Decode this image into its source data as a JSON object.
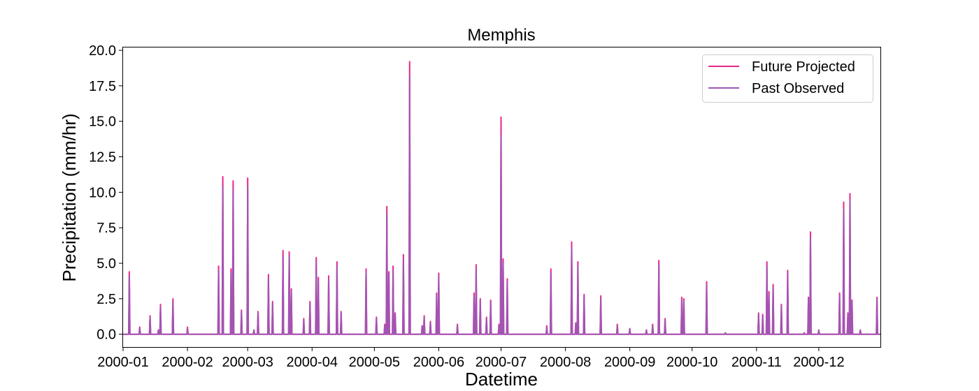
{
  "chart_data": {
    "type": "line",
    "title": "Memphis",
    "xlabel": "Datetime",
    "ylabel": "Precipitation (mm/hr)",
    "xlim": [
      "2000-01-01",
      "2000-12-31"
    ],
    "ylim": [
      -0.9,
      20.2
    ],
    "yticks": [
      0.0,
      2.5,
      5.0,
      7.5,
      10.0,
      12.5,
      15.0,
      17.5,
      20.0
    ],
    "ytick_labels": [
      "0.0",
      "2.5",
      "5.0",
      "7.5",
      "10.0",
      "12.5",
      "15.0",
      "17.5",
      "20.0"
    ],
    "xticks": [
      "2000-01-01",
      "2000-02-01",
      "2000-03-01",
      "2000-04-01",
      "2000-05-01",
      "2000-06-01",
      "2000-07-01",
      "2000-08-01",
      "2000-09-01",
      "2000-10-01",
      "2000-11-01",
      "2000-12-01"
    ],
    "xtick_labels": [
      "2000-01",
      "2000-02",
      "2000-03",
      "2000-04",
      "2000-05",
      "2000-06",
      "2000-07",
      "2000-08",
      "2000-09",
      "2000-10",
      "2000-11",
      "2000-12"
    ],
    "grid": false,
    "legend": {
      "position": "top-right"
    },
    "series": [
      {
        "name": "Future Projected",
        "color": "#e7298a",
        "points": [
          [
            "2000-01-04",
            4.4
          ],
          [
            "2000-01-09",
            0.5
          ],
          [
            "2000-01-14",
            1.3
          ],
          [
            "2000-01-18",
            0.3
          ],
          [
            "2000-01-19",
            2.1
          ],
          [
            "2000-01-25",
            2.5
          ],
          [
            "2000-02-01",
            0.5
          ],
          [
            "2000-02-16",
            4.8
          ],
          [
            "2000-02-18",
            11.1
          ],
          [
            "2000-02-22",
            4.6
          ],
          [
            "2000-02-23",
            10.8
          ],
          [
            "2000-02-27",
            1.7
          ],
          [
            "2000-03-01",
            11.0
          ],
          [
            "2000-03-04",
            0.3
          ],
          [
            "2000-03-06",
            1.6
          ],
          [
            "2000-03-11",
            4.2
          ],
          [
            "2000-03-13",
            2.3
          ],
          [
            "2000-03-18",
            5.9
          ],
          [
            "2000-03-21",
            5.8
          ],
          [
            "2000-03-22",
            3.2
          ],
          [
            "2000-03-28",
            1.1
          ],
          [
            "2000-03-31",
            2.3
          ],
          [
            "2000-04-03",
            5.4
          ],
          [
            "2000-04-04",
            4.0
          ],
          [
            "2000-04-09",
            4.1
          ],
          [
            "2000-04-13",
            5.1
          ],
          [
            "2000-04-15",
            1.6
          ],
          [
            "2000-04-27",
            4.6
          ],
          [
            "2000-05-02",
            1.2
          ],
          [
            "2000-05-06",
            0.7
          ],
          [
            "2000-05-07",
            9.0
          ],
          [
            "2000-05-08",
            4.4
          ],
          [
            "2000-05-10",
            4.8
          ],
          [
            "2000-05-11",
            1.5
          ],
          [
            "2000-05-15",
            5.6
          ],
          [
            "2000-05-18",
            19.2
          ],
          [
            "2000-05-24",
            0.6
          ],
          [
            "2000-05-25",
            1.3
          ],
          [
            "2000-05-28",
            0.9
          ],
          [
            "2000-05-31",
            2.9
          ],
          [
            "2000-06-01",
            4.3
          ],
          [
            "2000-06-10",
            0.7
          ],
          [
            "2000-06-18",
            2.9
          ],
          [
            "2000-06-19",
            4.9
          ],
          [
            "2000-06-21",
            2.5
          ],
          [
            "2000-06-24",
            1.2
          ],
          [
            "2000-06-26",
            2.4
          ],
          [
            "2000-06-30",
            0.7
          ],
          [
            "2000-07-01",
            15.3
          ],
          [
            "2000-07-02",
            5.3
          ],
          [
            "2000-07-04",
            3.9
          ],
          [
            "2000-07-23",
            0.6
          ],
          [
            "2000-07-25",
            4.6
          ],
          [
            "2000-08-04",
            6.5
          ],
          [
            "2000-08-06",
            0.8
          ],
          [
            "2000-08-07",
            5.1
          ],
          [
            "2000-08-10",
            2.8
          ],
          [
            "2000-08-18",
            2.7
          ],
          [
            "2000-08-26",
            0.7
          ],
          [
            "2000-09-01",
            0.4
          ],
          [
            "2000-09-09",
            0.3
          ],
          [
            "2000-09-12",
            0.7
          ],
          [
            "2000-09-15",
            5.2
          ],
          [
            "2000-09-18",
            1.1
          ],
          [
            "2000-09-26",
            2.6
          ],
          [
            "2000-09-27",
            2.5
          ],
          [
            "2000-10-08",
            3.7
          ],
          [
            "2000-10-17",
            0.1
          ],
          [
            "2000-11-02",
            1.5
          ],
          [
            "2000-11-04",
            1.4
          ],
          [
            "2000-11-06",
            5.1
          ],
          [
            "2000-11-07",
            3.0
          ],
          [
            "2000-11-09",
            3.5
          ],
          [
            "2000-11-13",
            2.1
          ],
          [
            "2000-11-16",
            4.5
          ],
          [
            "2000-11-24",
            0.1
          ],
          [
            "2000-11-26",
            2.6
          ],
          [
            "2000-11-27",
            7.2
          ],
          [
            "2000-12-01",
            0.3
          ],
          [
            "2000-12-11",
            2.9
          ],
          [
            "2000-12-13",
            9.3
          ],
          [
            "2000-12-15",
            1.5
          ],
          [
            "2000-12-16",
            9.9
          ],
          [
            "2000-12-17",
            2.4
          ],
          [
            "2000-12-21",
            0.3
          ],
          [
            "2000-12-29",
            2.6
          ]
        ]
      },
      {
        "name": "Past Observed",
        "color": "#9b59b6",
        "points": [
          [
            "2000-01-04",
            4.1
          ],
          [
            "2000-01-09",
            0.4
          ],
          [
            "2000-01-14",
            1.2
          ],
          [
            "2000-01-18",
            0.3
          ],
          [
            "2000-01-19",
            1.9
          ],
          [
            "2000-01-25",
            2.3
          ],
          [
            "2000-02-01",
            0.4
          ],
          [
            "2000-02-16",
            4.5
          ],
          [
            "2000-02-18",
            10.4
          ],
          [
            "2000-02-22",
            4.3
          ],
          [
            "2000-02-23",
            10.2
          ],
          [
            "2000-02-27",
            1.6
          ],
          [
            "2000-03-01",
            10.4
          ],
          [
            "2000-03-04",
            0.3
          ],
          [
            "2000-03-06",
            1.5
          ],
          [
            "2000-03-11",
            4.0
          ],
          [
            "2000-03-13",
            2.2
          ],
          [
            "2000-03-18",
            5.5
          ],
          [
            "2000-03-21",
            5.5
          ],
          [
            "2000-03-22",
            3.0
          ],
          [
            "2000-03-28",
            1.0
          ],
          [
            "2000-03-31",
            2.2
          ],
          [
            "2000-04-03",
            5.1
          ],
          [
            "2000-04-04",
            3.8
          ],
          [
            "2000-04-09",
            3.9
          ],
          [
            "2000-04-13",
            4.8
          ],
          [
            "2000-04-15",
            1.5
          ],
          [
            "2000-04-27",
            4.4
          ],
          [
            "2000-05-02",
            1.1
          ],
          [
            "2000-05-06",
            0.6
          ],
          [
            "2000-05-07",
            8.5
          ],
          [
            "2000-05-08",
            4.2
          ],
          [
            "2000-05-10",
            4.5
          ],
          [
            "2000-05-11",
            1.4
          ],
          [
            "2000-05-15",
            5.3
          ],
          [
            "2000-05-18",
            18.2
          ],
          [
            "2000-05-24",
            0.6
          ],
          [
            "2000-05-25",
            1.2
          ],
          [
            "2000-05-28",
            0.8
          ],
          [
            "2000-05-31",
            2.8
          ],
          [
            "2000-06-01",
            4.1
          ],
          [
            "2000-06-10",
            0.6
          ],
          [
            "2000-06-18",
            2.7
          ],
          [
            "2000-06-19",
            4.6
          ],
          [
            "2000-06-21",
            2.4
          ],
          [
            "2000-06-24",
            1.1
          ],
          [
            "2000-06-26",
            2.3
          ],
          [
            "2000-06-30",
            0.6
          ],
          [
            "2000-07-01",
            14.0
          ],
          [
            "2000-07-02",
            5.0
          ],
          [
            "2000-07-04",
            3.7
          ],
          [
            "2000-07-23",
            0.5
          ],
          [
            "2000-07-25",
            4.3
          ],
          [
            "2000-08-04",
            6.1
          ],
          [
            "2000-08-06",
            0.8
          ],
          [
            "2000-08-07",
            4.8
          ],
          [
            "2000-08-10",
            2.7
          ],
          [
            "2000-08-18",
            2.5
          ],
          [
            "2000-08-26",
            0.6
          ],
          [
            "2000-09-01",
            0.4
          ],
          [
            "2000-09-09",
            0.3
          ],
          [
            "2000-09-12",
            0.6
          ],
          [
            "2000-09-15",
            4.9
          ],
          [
            "2000-09-18",
            1.0
          ],
          [
            "2000-09-26",
            2.4
          ],
          [
            "2000-09-27",
            2.3
          ],
          [
            "2000-10-08",
            3.5
          ],
          [
            "2000-10-17",
            0.1
          ],
          [
            "2000-11-02",
            1.4
          ],
          [
            "2000-11-04",
            1.3
          ],
          [
            "2000-11-06",
            4.8
          ],
          [
            "2000-11-07",
            2.8
          ],
          [
            "2000-11-09",
            3.3
          ],
          [
            "2000-11-13",
            2.0
          ],
          [
            "2000-11-16",
            4.3
          ],
          [
            "2000-11-24",
            0.1
          ],
          [
            "2000-11-26",
            2.5
          ],
          [
            "2000-11-27",
            6.8
          ],
          [
            "2000-12-01",
            0.3
          ],
          [
            "2000-12-11",
            2.8
          ],
          [
            "2000-12-13",
            8.8
          ],
          [
            "2000-12-15",
            1.4
          ],
          [
            "2000-12-16",
            9.4
          ],
          [
            "2000-12-17",
            2.3
          ],
          [
            "2000-12-21",
            0.3
          ],
          [
            "2000-12-29",
            2.5
          ]
        ]
      }
    ]
  }
}
